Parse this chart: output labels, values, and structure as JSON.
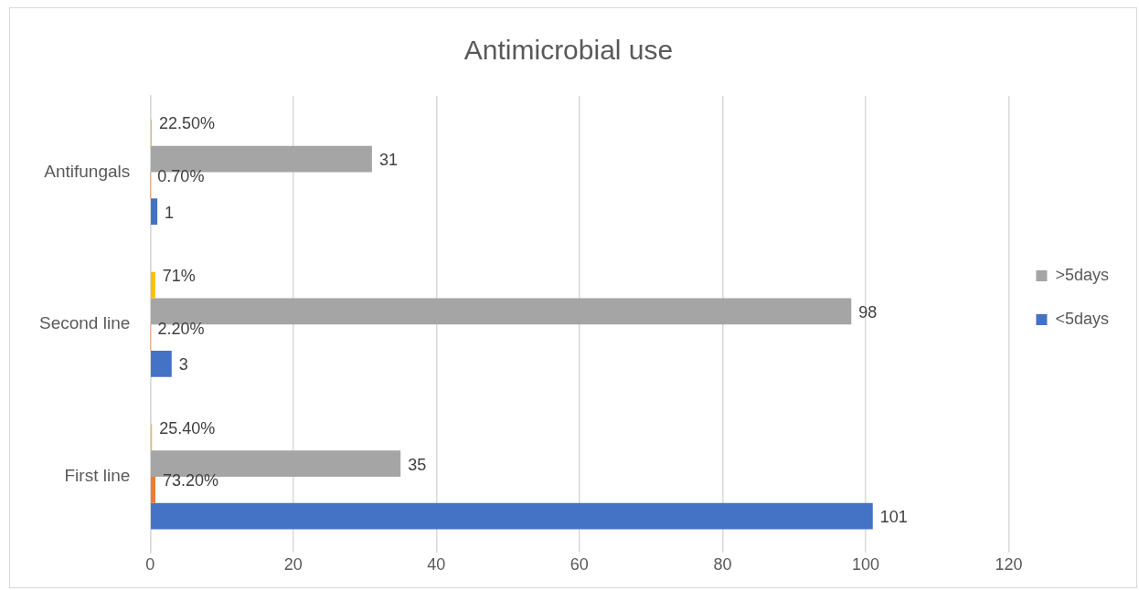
{
  "chart_data": {
    "type": "bar",
    "orientation": "horizontal",
    "title": "Antimicrobial use",
    "categories": [
      "Antifungals",
      "Second line",
      "First line"
    ],
    "series": [
      {
        "name": "<5days",
        "color": "#4472c4",
        "values": [
          1,
          3,
          101
        ]
      },
      {
        "color": "#ed7d31",
        "values": [
          0.007,
          0.022,
          0.732
        ],
        "value_labels": [
          "0.70%",
          "2.20%",
          "73.20%"
        ]
      },
      {
        "name": ">5days",
        "color": "#a5a5a5",
        "values": [
          31,
          98,
          35
        ]
      },
      {
        "color": "#ffc000",
        "values": [
          0.225,
          0.71,
          0.254
        ],
        "value_labels": [
          "22.50%",
          "71%",
          "25.40%"
        ]
      }
    ],
    "xlim": [
      0,
      120
    ],
    "xticks": [
      0,
      20,
      40,
      60,
      80,
      100,
      120
    ],
    "grid": "x",
    "legend": "right",
    "data_labels": true
  }
}
